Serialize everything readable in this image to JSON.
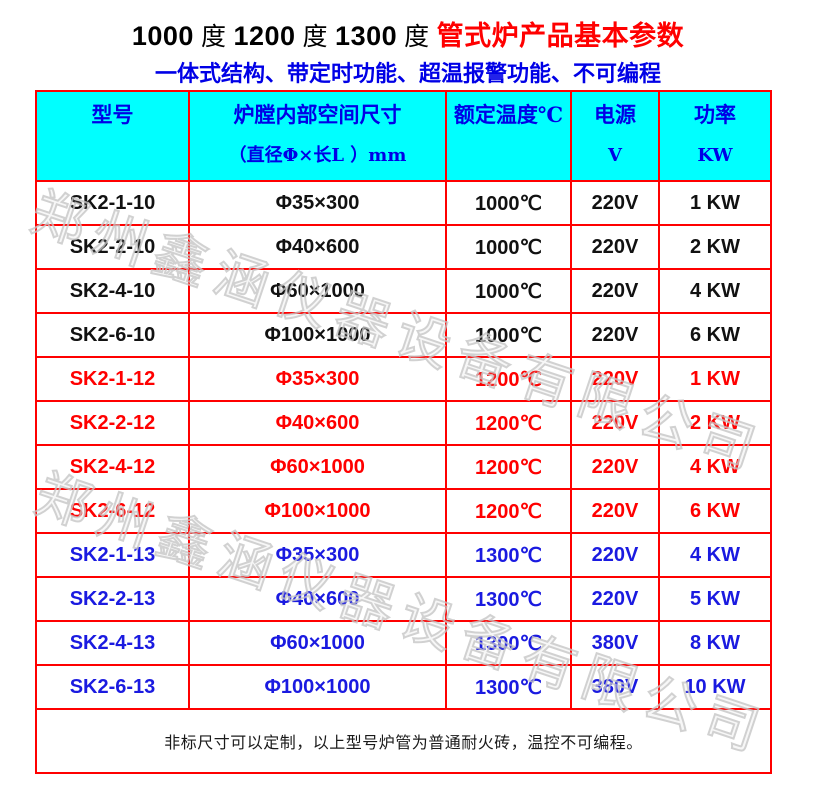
{
  "title": {
    "black_parts": [
      {
        "num": "1000",
        "deg": "度"
      },
      {
        "num": "1200",
        "deg": "度"
      },
      {
        "num": "1300",
        "deg": "度"
      }
    ],
    "red": "管式炉产品基本参数"
  },
  "subtitle": "一体式结构、带定时功能、超温报警功能、不可编程",
  "table": {
    "headers": [
      {
        "line1": "型号",
        "line2": ""
      },
      {
        "line1": "炉膛内部空间尺寸",
        "line2": "（直径Φ×长L ）mm"
      },
      {
        "line1": "额定温度℃",
        "line2": ""
      },
      {
        "line1": "电源",
        "line2": "V"
      },
      {
        "line1": "功率",
        "line2": "KW"
      }
    ],
    "rows": [
      {
        "model": "SK2-1-10",
        "size": "Φ35×300",
        "temp": "1000℃",
        "voltage": "220V",
        "power": "1 KW",
        "group": "black"
      },
      {
        "model": "SK2-2-10",
        "size": "Φ40×600",
        "temp": "1000℃",
        "voltage": "220V",
        "power": "2 KW",
        "group": "black"
      },
      {
        "model": "SK2-4-10",
        "size": "Φ60×1000",
        "temp": "1000℃",
        "voltage": "220V",
        "power": "4 KW",
        "group": "black"
      },
      {
        "model": "SK2-6-10",
        "size": "Φ100×1000",
        "temp": "1000℃",
        "voltage": "220V",
        "power": "6 KW",
        "group": "black"
      },
      {
        "model": "SK2-1-12",
        "size": "Φ35×300",
        "temp": "1200℃",
        "voltage": "220V",
        "power": "1 KW",
        "group": "red"
      },
      {
        "model": "SK2-2-12",
        "size": "Φ40×600",
        "temp": "1200℃",
        "voltage": "220V",
        "power": "2 KW",
        "group": "red"
      },
      {
        "model": "SK2-4-12",
        "size": "Φ60×1000",
        "temp": "1200℃",
        "voltage": "220V",
        "power": "4 KW",
        "group": "red"
      },
      {
        "model": "SK2-6-12",
        "size": "Φ100×1000",
        "temp": "1200℃",
        "voltage": "220V",
        "power": "6 KW",
        "group": "red"
      },
      {
        "model": "SK2-1-13",
        "size": "Φ35×300",
        "temp": "1300℃",
        "voltage": "220V",
        "power": "4 KW",
        "group": "blue"
      },
      {
        "model": "SK2-2-13",
        "size": "Φ40×600",
        "temp": "1300℃",
        "voltage": "220V",
        "power": "5 KW",
        "group": "blue"
      },
      {
        "model": "SK2-4-13",
        "size": "Φ60×1000",
        "temp": "1300℃",
        "voltage": "380V",
        "power": "8 KW",
        "group": "blue"
      },
      {
        "model": "SK2-6-13",
        "size": "Φ100×1000",
        "temp": "1300℃",
        "voltage": "380V",
        "power": "10 KW",
        "group": "blue"
      }
    ],
    "footer_note": "非标尺寸可以定制，以上型号炉管为普通耐火砖，温控不可编程。"
  },
  "watermark": {
    "text": "郑州鑫涵仪器设备有限公司"
  },
  "colors": {
    "border_red": "#ff0000",
    "header_bg": "#00ffff",
    "header_text": "#0000e6",
    "subtitle_blue": "#0000e6",
    "title_red": "#ff0000",
    "title_black": "#000000",
    "row_black": "#111111",
    "row_red": "#ff0000",
    "row_blue": "#1a1ae0",
    "watermark_gray": "#c6c6c6"
  }
}
